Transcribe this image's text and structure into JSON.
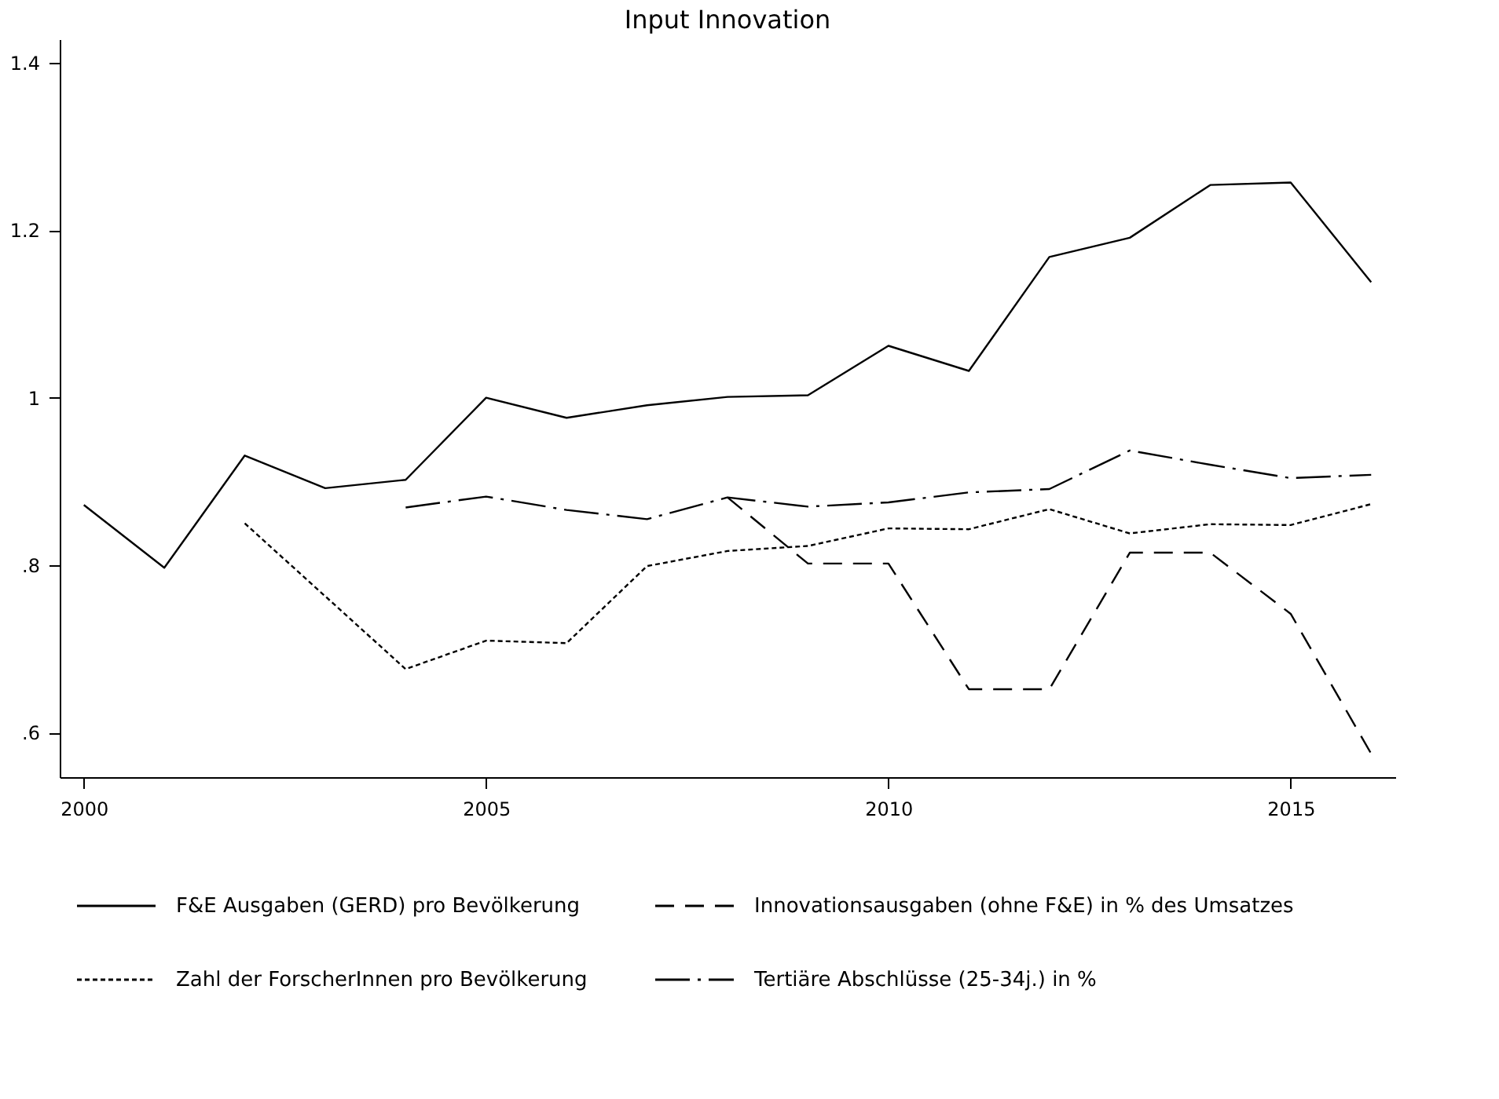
{
  "chart_data": {
    "type": "line",
    "title": "Input Innovation",
    "x": [
      2000,
      2001,
      2002,
      2003,
      2004,
      2005,
      2006,
      2007,
      2008,
      2009,
      2010,
      2011,
      2012,
      2013,
      2014,
      2015,
      2016
    ],
    "series": [
      {
        "name": "F&E Ausgaben (GERD) pro Bevölkerung",
        "color": "#000000",
        "line_style": "solid",
        "values": [
          0.872,
          0.797,
          0.931,
          0.892,
          0.902,
          1.0,
          0.976,
          0.991,
          1.001,
          1.003,
          1.062,
          1.032,
          1.168,
          1.191,
          1.254,
          1.257,
          1.138
        ]
      },
      {
        "name": "Innovationsausgaben (ohne F&E) in % des Umsatzes",
        "color": "#000000",
        "line_style": "dashed",
        "values": [
          null,
          null,
          null,
          null,
          null,
          null,
          null,
          null,
          0.881,
          0.802,
          0.802,
          0.652,
          0.652,
          0.815,
          0.815,
          0.742,
          0.575
        ]
      },
      {
        "name": "Zahl der ForscherInnen pro Bevölkerung",
        "color": "#000000",
        "line_style": "dotted",
        "values": [
          null,
          null,
          0.85,
          0.763,
          0.676,
          0.71,
          0.707,
          0.799,
          0.817,
          0.823,
          0.844,
          0.843,
          0.867,
          0.838,
          0.849,
          0.848,
          0.873
        ]
      },
      {
        "name": "Tertiäre Abschlüsse (25-34j.) in %",
        "color": "#000000",
        "line_style": "dashdot",
        "values": [
          null,
          null,
          null,
          null,
          0.869,
          0.882,
          0.866,
          0.855,
          0.881,
          0.87,
          0.875,
          0.887,
          0.891,
          0.937,
          0.92,
          0.904,
          0.908
        ]
      }
    ],
    "xlim": [
      1999.7,
      2016.3
    ],
    "xticks": [
      2000,
      2005,
      2010,
      2015
    ],
    "ylim": [
      0.547,
      1.428
    ],
    "yticks": [
      {
        "value": 0.6,
        "label": ".6"
      },
      {
        "value": 0.8,
        "label": ".8"
      },
      {
        "value": 1,
        "label": "1"
      },
      1.2,
      1.4
    ],
    "grid": false,
    "legend": "bottom",
    "marker": "none"
  }
}
